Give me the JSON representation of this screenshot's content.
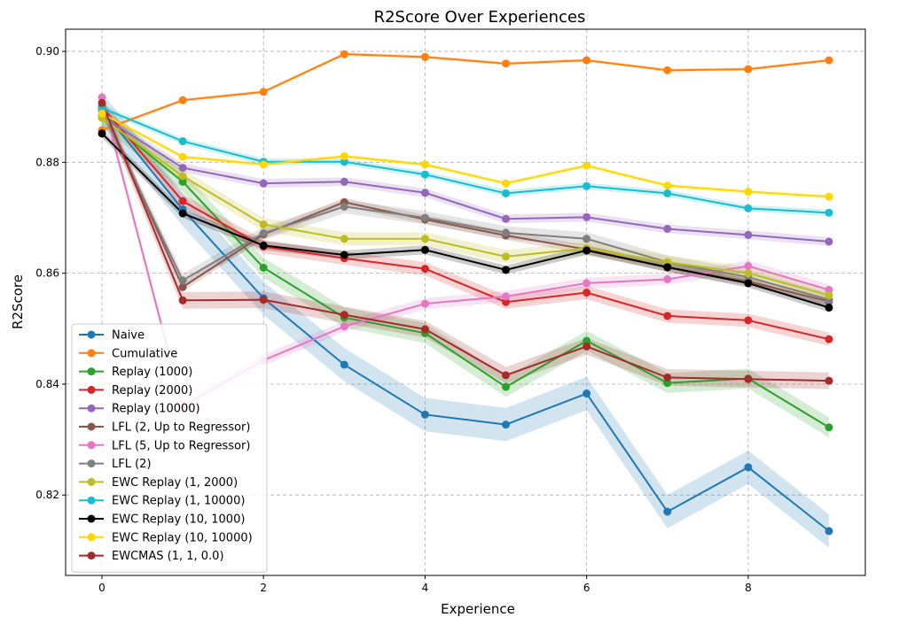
{
  "chart_data": {
    "type": "line",
    "title": "R2Score Over Experiences",
    "xlabel": "Experience",
    "ylabel": "R2Score",
    "xlim": [
      -0.45,
      9.45
    ],
    "ylim": [
      0.8055,
      0.904
    ],
    "xticks": [
      0,
      2,
      4,
      6,
      8
    ],
    "yticks": [
      0.82,
      0.84,
      0.86,
      0.88,
      0.9
    ],
    "ytick_labels": [
      "0.82",
      "0.84",
      "0.86",
      "0.88",
      "0.90"
    ],
    "grid": true,
    "legend_position": "lower-left",
    "x": [
      0,
      1,
      2,
      3,
      4,
      5,
      6,
      7,
      8,
      9
    ],
    "series": [
      {
        "name": "Naive",
        "color": "#1f77b4",
        "values": [
          0.8895,
          0.8715,
          0.8555,
          0.8435,
          0.8345,
          0.8327,
          0.8383,
          0.817,
          0.825,
          0.8135
        ],
        "band": 0.003
      },
      {
        "name": "Cumulative",
        "color": "#ff7f0e",
        "values": [
          0.8858,
          0.8912,
          0.8927,
          0.8995,
          0.899,
          0.8978,
          0.8984,
          0.8966,
          0.8968,
          0.8984
        ],
        "band": 0.0003
      },
      {
        "name": "Replay (1000)",
        "color": "#2ca02c",
        "values": [
          0.8883,
          0.8765,
          0.861,
          0.852,
          0.8492,
          0.8395,
          0.8478,
          0.8402,
          0.841,
          0.8322
        ],
        "band": 0.0018
      },
      {
        "name": "Replay (2000)",
        "color": "#d62728",
        "values": [
          0.89,
          0.873,
          0.8648,
          0.8627,
          0.8608,
          0.8548,
          0.8565,
          0.8523,
          0.8515,
          0.8481
        ],
        "band": 0.0012
      },
      {
        "name": "Replay (10000)",
        "color": "#9467bd",
        "values": [
          0.8883,
          0.879,
          0.8762,
          0.8765,
          0.8745,
          0.8698,
          0.8701,
          0.868,
          0.8669,
          0.8657
        ],
        "band": 0.0008
      },
      {
        "name": "LFL (2, Up to Regressor)",
        "color": "#8c564b",
        "values": [
          0.89,
          0.8575,
          0.867,
          0.8728,
          0.8697,
          0.8668,
          0.8643,
          0.861,
          0.8585,
          0.8549
        ],
        "band": 0.0008
      },
      {
        "name": "LFL (5, Up to Regressor)",
        "color": "#e377c2",
        "values": [
          0.8917,
          0.836,
          0.8443,
          0.8504,
          0.8545,
          0.8558,
          0.8582,
          0.8589,
          0.8613,
          0.857
        ],
        "band": 0.001
      },
      {
        "name": "LFL (2)",
        "color": "#7f7f7f",
        "values": [
          0.8893,
          0.8587,
          0.8672,
          0.872,
          0.87,
          0.8673,
          0.8662,
          0.862,
          0.8593,
          0.8552
        ],
        "band": 0.0012
      },
      {
        "name": "EWC Replay (1, 2000)",
        "color": "#bcbd22",
        "values": [
          0.888,
          0.8775,
          0.8688,
          0.8662,
          0.8662,
          0.863,
          0.8645,
          0.862,
          0.86,
          0.856
        ],
        "band": 0.0012
      },
      {
        "name": "EWC Replay (1, 10000)",
        "color": "#17becf",
        "values": [
          0.8898,
          0.8838,
          0.8801,
          0.8801,
          0.8778,
          0.8744,
          0.8757,
          0.8744,
          0.8717,
          0.8709
        ],
        "band": 0.0006
      },
      {
        "name": "EWC Replay (10, 1000)",
        "color": "#000000",
        "values": [
          0.8852,
          0.8708,
          0.865,
          0.8633,
          0.8642,
          0.8606,
          0.8641,
          0.8611,
          0.8582,
          0.8538
        ],
        "band": 0.0008
      },
      {
        "name": "EWC Replay (10, 10000)",
        "color": "#ffd700",
        "values": [
          0.8888,
          0.881,
          0.8796,
          0.8811,
          0.8796,
          0.8762,
          0.8794,
          0.8758,
          0.8747,
          0.8738
        ],
        "band": 0.0004
      },
      {
        "name": "EWCMAS (1, 1, 0.0)",
        "color": "#a52a2a",
        "values": [
          0.8907,
          0.8551,
          0.8552,
          0.8525,
          0.8499,
          0.8416,
          0.8468,
          0.8412,
          0.8409,
          0.8406
        ],
        "band": 0.0015
      }
    ]
  }
}
